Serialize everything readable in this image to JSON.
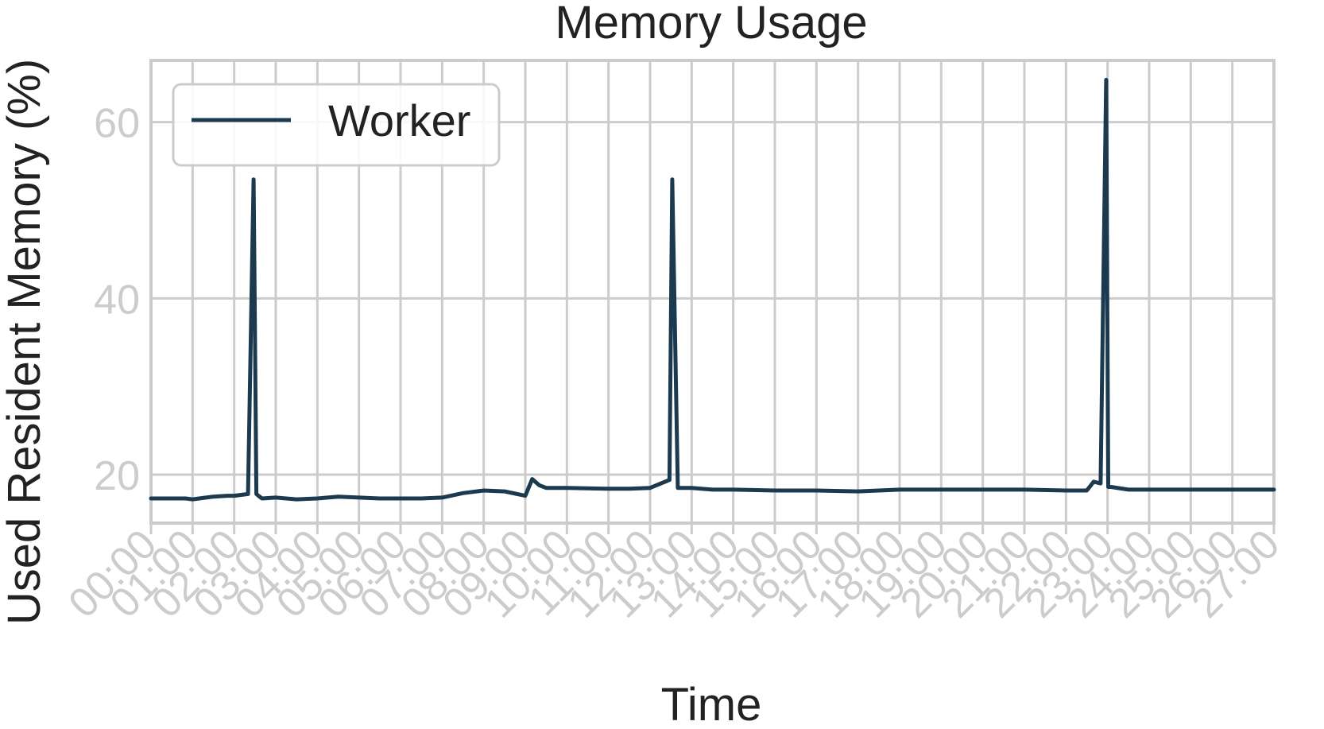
{
  "chart_data": {
    "type": "line",
    "title": "Memory Usage",
    "xlabel": "Time",
    "ylabel": "Used Resident Memory (%)",
    "x_ticks": [
      "00:00",
      "01:00",
      "02:00",
      "03:00",
      "04:00",
      "05:00",
      "06:00",
      "07:00",
      "08:00",
      "09:00",
      "10:00",
      "11:00",
      "12:00",
      "13:00",
      "14:00",
      "15:00",
      "16:00",
      "17:00",
      "18:00",
      "19:00",
      "20:00",
      "21:00",
      "22:00",
      "23:00",
      "24:00",
      "25:00",
      "26:00",
      "27:00"
    ],
    "y_ticks": [
      20,
      40,
      60
    ],
    "xlim": [
      "00:00",
      "27:00"
    ],
    "ylim": [
      14.5,
      67
    ],
    "grid": true,
    "legend_position": "top-left",
    "colors": {
      "series": "#1b3a4f",
      "grid": "#cccccc",
      "tick_label": "#cccccc",
      "text": "#222222"
    },
    "series": [
      {
        "name": "Worker",
        "x": [
          "00:00",
          "00:50",
          "01:00",
          "01:30",
          "01:50",
          "02:00",
          "02:20",
          "02:28",
          "02:32",
          "02:35",
          "02:40",
          "03:00",
          "03:30",
          "04:00",
          "04:30",
          "05:00",
          "05:30",
          "06:00",
          "06:30",
          "07:00",
          "07:30",
          "08:00",
          "08:30",
          "09:00",
          "09:10",
          "09:20",
          "09:30",
          "09:40",
          "10:00",
          "11:00",
          "11:30",
          "12:00",
          "12:28",
          "12:32",
          "12:40",
          "12:45",
          "13:00",
          "13:30",
          "14:00",
          "15:00",
          "16:00",
          "17:00",
          "18:00",
          "19:00",
          "20:00",
          "21:00",
          "22:00",
          "22:30",
          "22:40",
          "22:50",
          "22:58",
          "23:01",
          "23:05",
          "23:30",
          "24:00",
          "25:00",
          "26:00",
          "27:00"
        ],
        "y": [
          17.3,
          17.3,
          17.2,
          17.5,
          17.6,
          17.6,
          17.8,
          53.5,
          17.8,
          17.6,
          17.3,
          17.4,
          17.2,
          17.3,
          17.5,
          17.4,
          17.3,
          17.3,
          17.3,
          17.4,
          17.9,
          18.2,
          18.1,
          17.6,
          19.5,
          18.8,
          18.5,
          18.5,
          18.5,
          18.4,
          18.4,
          18.5,
          19.4,
          53.5,
          18.5,
          18.5,
          18.5,
          18.3,
          18.3,
          18.2,
          18.2,
          18.1,
          18.3,
          18.3,
          18.3,
          18.3,
          18.2,
          18.2,
          19.2,
          19.0,
          64.8,
          18.6,
          18.6,
          18.3,
          18.3,
          18.3,
          18.3,
          18.3
        ]
      }
    ]
  }
}
